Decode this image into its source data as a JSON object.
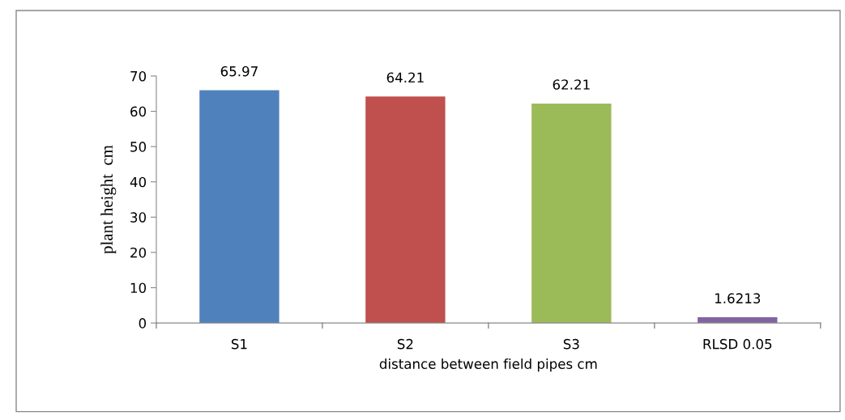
{
  "chart_data": {
    "type": "bar",
    "xlabel": "distance between field pipes cm",
    "ylabel": "plant height  cm",
    "categories": [
      "S1",
      "S2",
      "S3",
      "RLSD 0.05"
    ],
    "values": [
      65.97,
      64.21,
      62.21,
      1.6213
    ],
    "colors": [
      "#4f81bd",
      "#c0504d",
      "#9bbb59",
      "#8064a2"
    ],
    "ylim": [
      0,
      70
    ],
    "yticks": [
      0,
      10,
      20,
      30,
      40,
      50,
      60,
      70
    ],
    "data_labels": true,
    "grid": false
  }
}
